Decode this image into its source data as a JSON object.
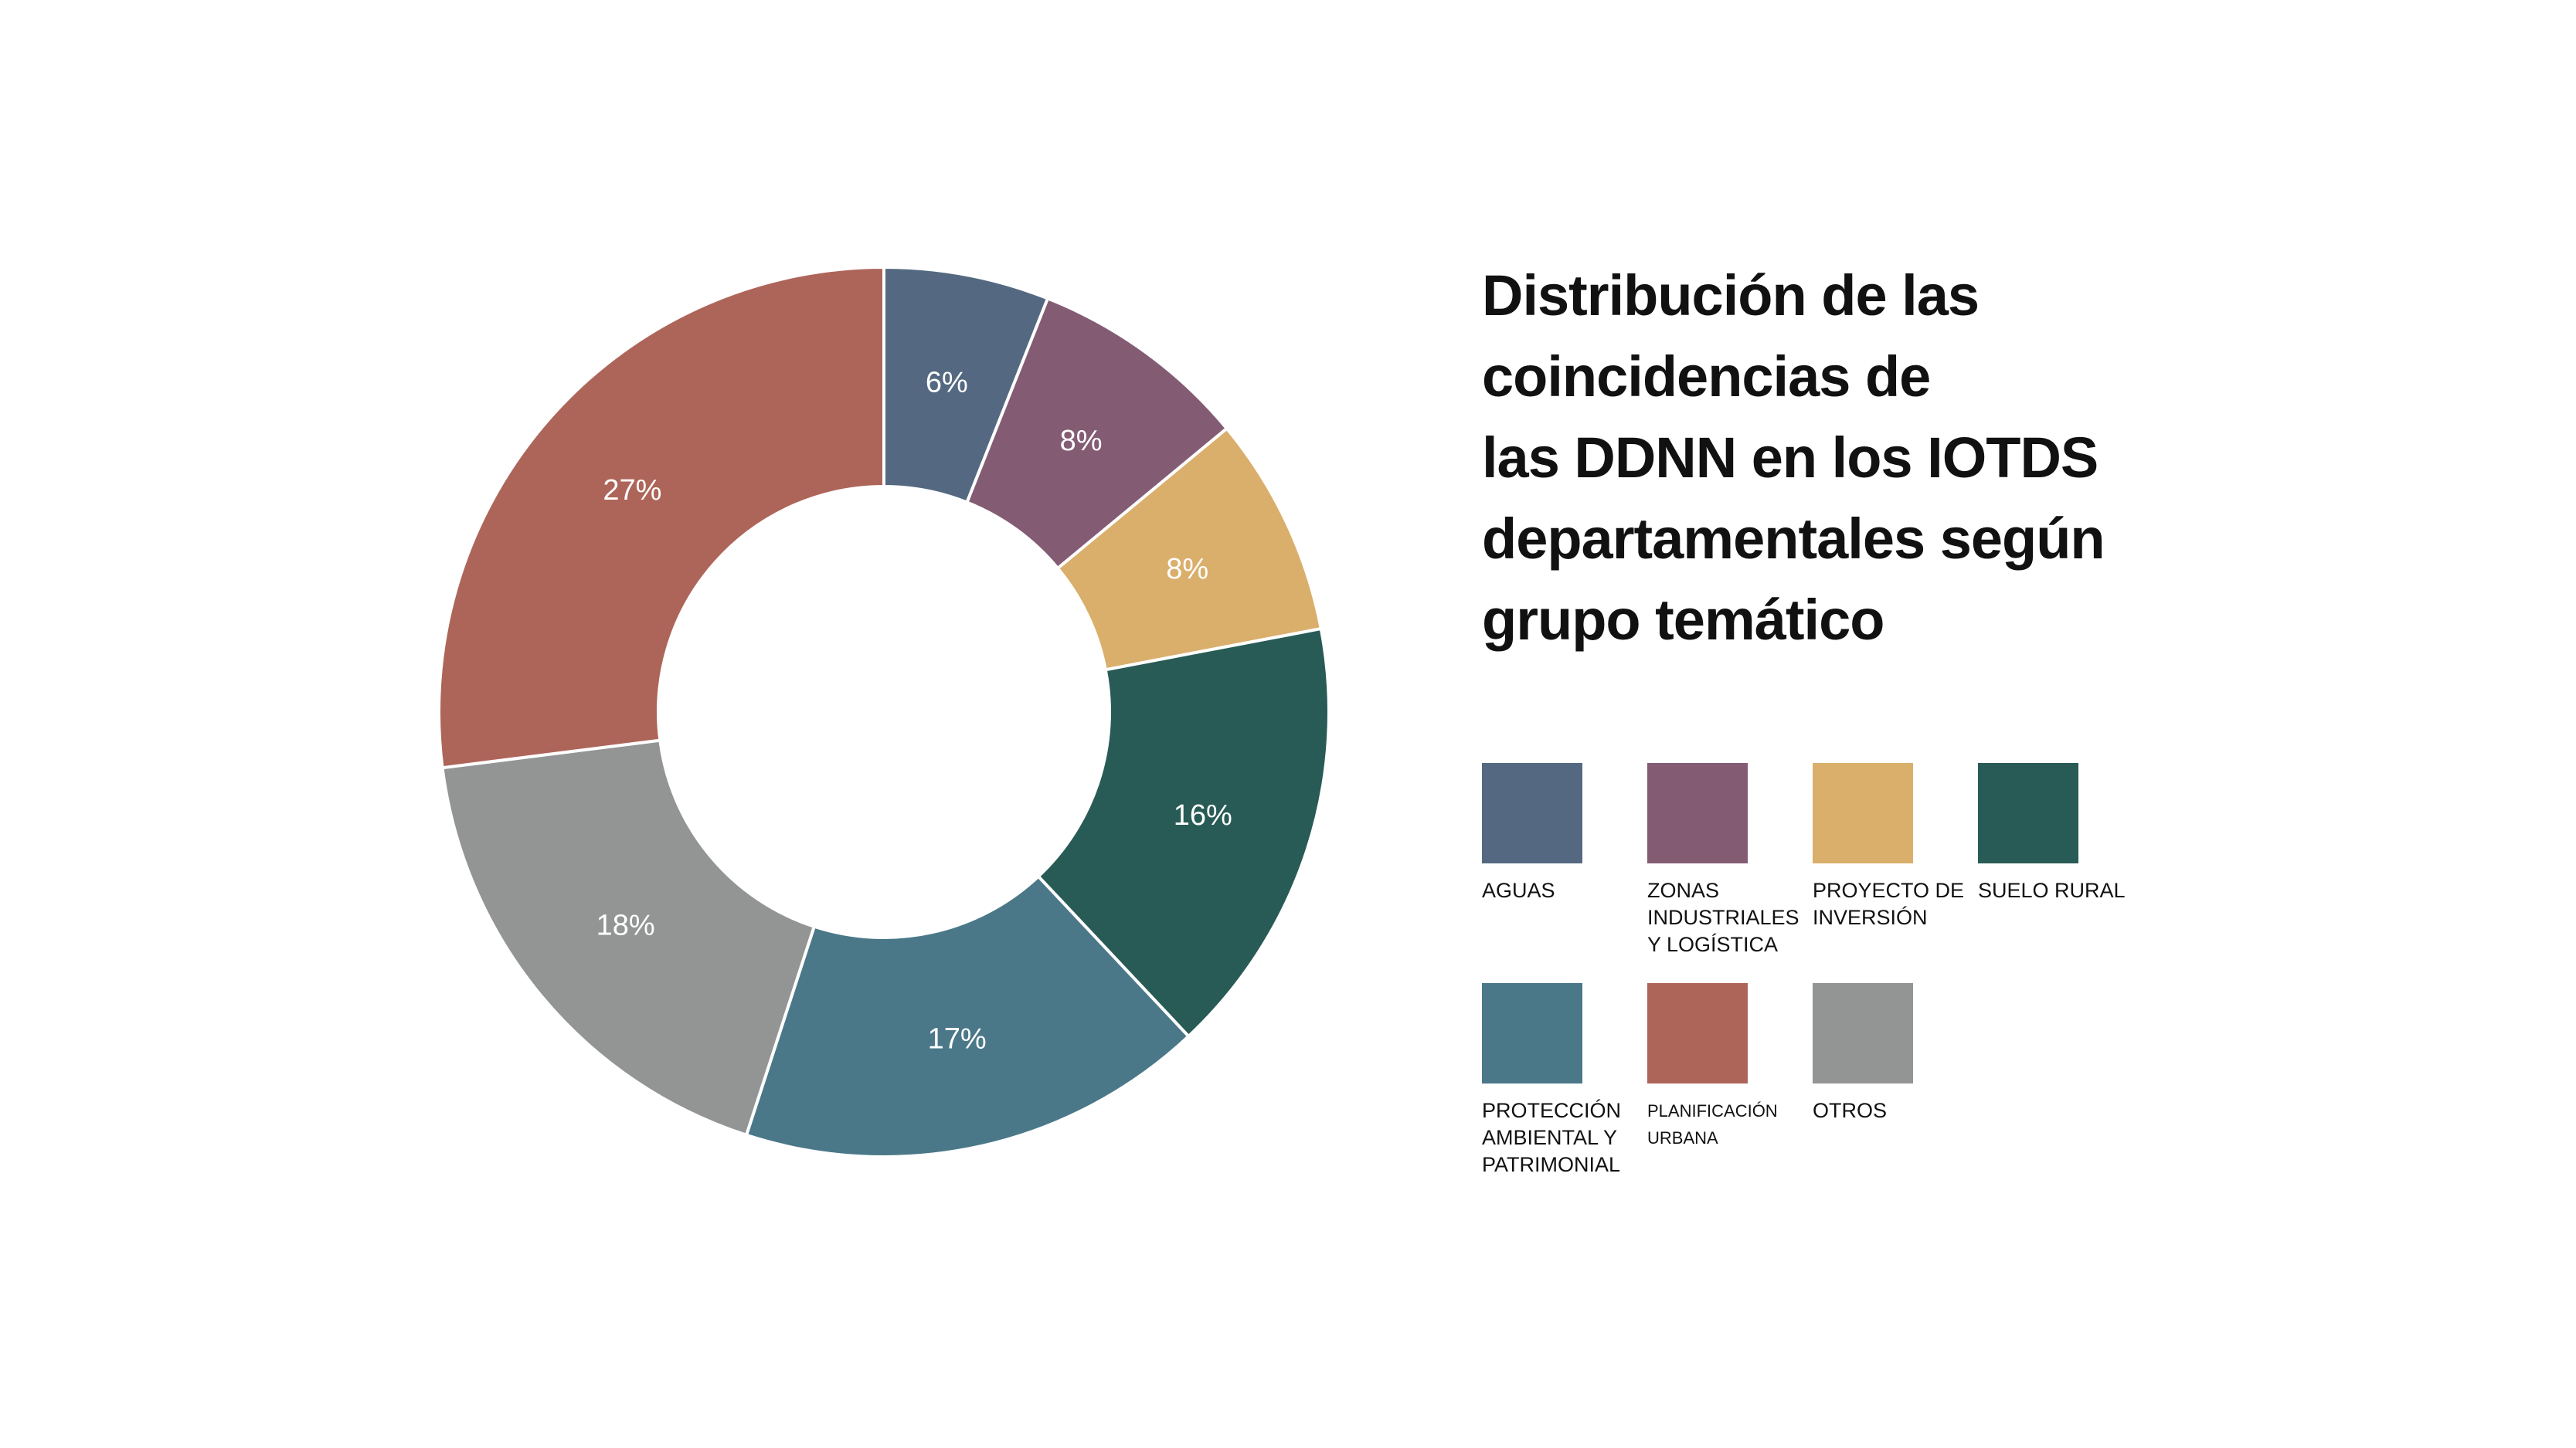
{
  "chart_data": {
    "type": "pie",
    "donut": true,
    "title_lines": [
      "Distribución de las",
      "coincidencias de",
      "las DDNN en los IOTDS",
      "departamentales según",
      "grupo temático"
    ],
    "slices": [
      {
        "name": "AGUAS",
        "value": 6,
        "label": "6%",
        "color": "#546981"
      },
      {
        "name": "ZONAS\nINDUSTRIALES\nY LOGÍSTICA",
        "value": 8,
        "label": "8%",
        "color": "#835C74"
      },
      {
        "name": "PROYECTO DE\nINVERSIÓN",
        "value": 8,
        "label": "8%",
        "color": "#DAAF6C"
      },
      {
        "name": "SUELO RURAL",
        "value": 16,
        "label": "16%",
        "color": "#285B55"
      },
      {
        "name": "PROTECCIÓN\nAMBIENTAL Y\nPATRIMONIAL",
        "value": 17,
        "label": "17%",
        "color": "#4A7888"
      },
      {
        "name": "OTROS",
        "value": 18,
        "label": "18%",
        "color": "#939594"
      },
      {
        "name": "PLANIFICACIÓN\nURBANA",
        "value": 27,
        "label": "27%",
        "color": "#AE6559"
      }
    ],
    "legend_order": [
      "AGUAS",
      "ZONAS\nINDUSTRIALES\nY LOGÍSTICA",
      "PROYECTO DE\nINVERSIÓN",
      "SUELO RURAL",
      "PROTECCIÓN\nAMBIENTAL Y\nPATRIMONIAL",
      "PLANIFICACIÓN\nURBANA",
      "OTROS"
    ],
    "legend_placement": "right, below title",
    "label_color": "#ffffff"
  }
}
